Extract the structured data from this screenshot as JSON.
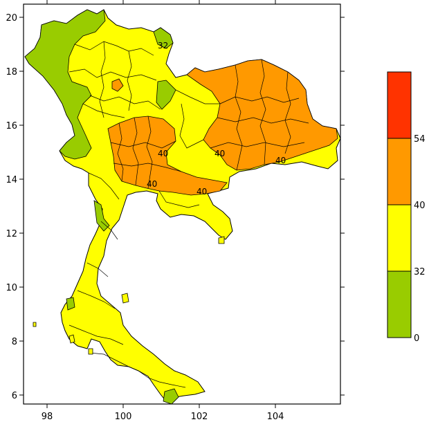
{
  "map": {
    "x_ticks": [
      "98",
      "100",
      "102",
      "104"
    ],
    "y_ticks": [
      "6",
      "8",
      "10",
      "12",
      "14",
      "16",
      "18",
      "20"
    ],
    "contour_labels": [
      "32",
      "40",
      "40",
      "40",
      "40",
      "40"
    ]
  },
  "legend": {
    "bins": [
      {
        "color": "#99cc00"
      },
      {
        "color": "#ffff00"
      },
      {
        "color": "#ff9900"
      },
      {
        "color": "#ff3300"
      }
    ],
    "labels": [
      "0",
      "32",
      "40",
      "54"
    ]
  },
  "colors": {
    "green": "#99cc00",
    "yellow": "#ffff00",
    "orange": "#ff9900",
    "red": "#ff3300"
  }
}
